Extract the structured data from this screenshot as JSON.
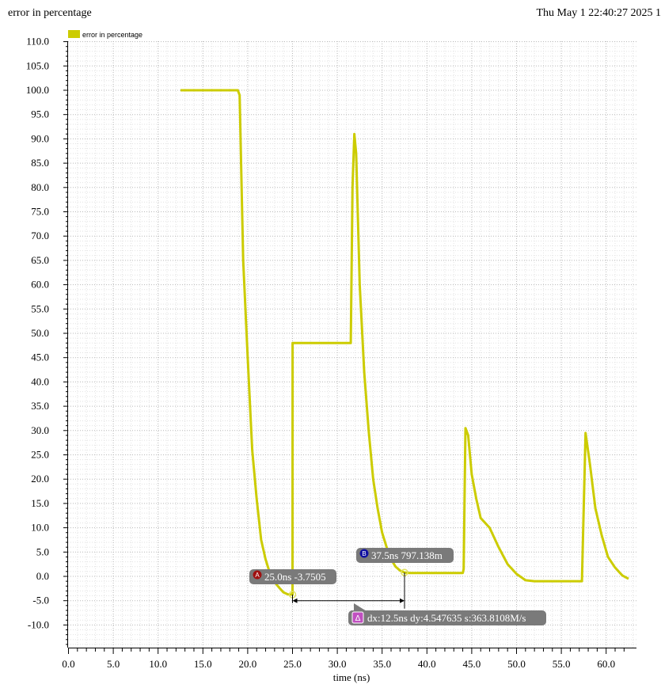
{
  "window": {
    "title": "error in percentage",
    "timestamp": "Thu May 1 22:40:27 2025  1"
  },
  "colors": {
    "trace": "#cccc00",
    "grid": "#b8b8b8",
    "marker_label_bg": "#7a7a7a",
    "marker_a": "#a01010",
    "marker_b": "#1010a0",
    "delta": "#c050c0"
  },
  "chart_data": {
    "type": "line",
    "xlabel": "time (ns)",
    "ylabel": "",
    "xlim": [
      0,
      63
    ],
    "ylim": [
      -15,
      110
    ],
    "x_ticks": [
      0,
      5,
      10,
      15,
      20,
      25,
      30,
      35,
      40,
      45,
      50,
      55,
      60
    ],
    "x_tick_labels": [
      "0.0",
      "5.0",
      "10.0",
      "15.0",
      "20.0",
      "25.0",
      "30.0",
      "35.0",
      "40.0",
      "45.0",
      "50.0",
      "55.0",
      "60.0"
    ],
    "y_ticks": [
      110,
      105,
      100,
      95,
      90,
      85,
      80,
      75,
      70,
      65,
      60,
      55,
      50,
      45,
      40,
      35,
      30,
      25,
      20,
      15,
      10,
      5,
      0,
      -5,
      -10
    ],
    "y_tick_labels": [
      "110.0",
      "105.0",
      "100.0",
      "95.0",
      "90.0",
      "85.0",
      "80.0",
      "75.0",
      "70.0",
      "65.0",
      "60.0",
      "55.0",
      "50.0",
      "45.0",
      "40.0",
      "35.0",
      "30.0",
      "25.0",
      "20.0",
      "15.0",
      "10.0",
      "5.0",
      "0.0",
      "-5.0",
      "-10.0"
    ],
    "grid": true,
    "legend_position": "top-left",
    "series": [
      {
        "name": "error in percentage",
        "x": [
          12.5,
          18.9,
          19.1,
          19.5,
          20.0,
          20.5,
          21.0,
          21.5,
          22.0,
          22.5,
          23.0,
          23.5,
          24.0,
          24.5,
          25.0,
          25.01,
          31.5,
          31.7,
          31.9,
          32.1,
          32.5,
          33.0,
          33.5,
          34.0,
          34.5,
          35.0,
          35.5,
          36.0,
          36.5,
          37.0,
          37.5,
          38.0,
          40.0,
          44.0,
          44.1,
          44.3,
          44.6,
          45.0,
          45.5,
          46.0,
          47.0,
          48.0,
          49.0,
          50.0,
          51.0,
          52.0,
          53.0,
          54.0,
          55.0,
          56.5,
          56.7,
          56.9,
          57.3,
          57.7,
          58.2,
          58.8,
          59.5,
          60.2,
          61.0,
          61.8,
          62.5
        ],
        "values": [
          100,
          100,
          99,
          65,
          45,
          26,
          16,
          7.5,
          3.5,
          0.5,
          -1.2,
          -2.3,
          -3.3,
          -3.7,
          -3.75,
          48,
          48,
          80,
          91,
          87,
          60,
          42,
          30,
          20,
          14,
          9,
          6,
          3.5,
          2,
          1.2,
          0.8,
          0.7,
          0.7,
          0.7,
          1.5,
          30.5,
          29,
          21,
          16,
          12,
          10,
          6,
          2.5,
          0.5,
          -0.8,
          -1,
          -1,
          -1,
          -1,
          -1,
          -1,
          -1,
          -1,
          29.5,
          23,
          14,
          8.5,
          4,
          1.8,
          0.2,
          -0.5
        ]
      }
    ],
    "markers": [
      {
        "id": "A",
        "x": 25.0,
        "y": -3.7505,
        "label": "25.0ns -3.7505"
      },
      {
        "id": "B",
        "x": 37.5,
        "y": 0.797138,
        "label": "37.5ns 797.138m"
      }
    ],
    "delta": {
      "symbol": "Δ",
      "label": "dx:12.5ns dy:4.547635 s:363.8108M/s"
    }
  }
}
